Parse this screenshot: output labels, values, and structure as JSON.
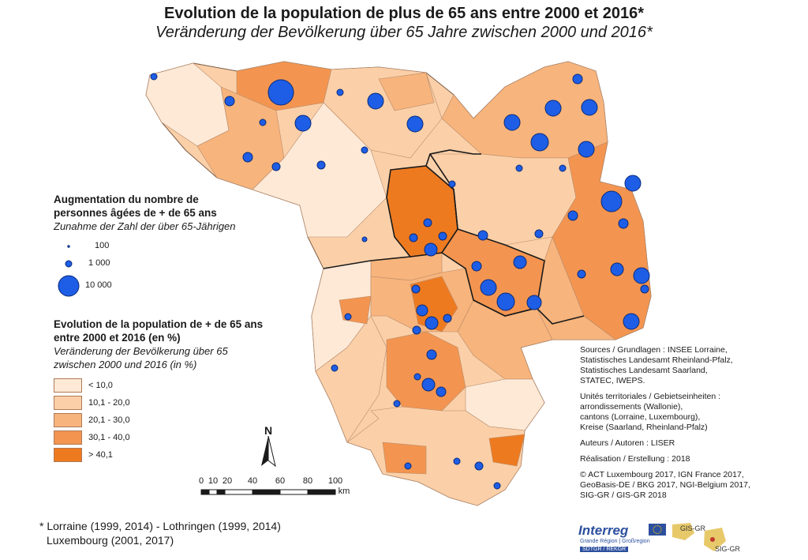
{
  "title": "Evolution de la population de plus de 65 ans entre 2000 et 2016*",
  "subtitle": "Veränderung der Bevölkerung über 65 Jahre zwischen 2000 und 2016*",
  "legend_symbols": {
    "heading_fr_1": "Augmentation du nombre de",
    "heading_fr_2": "personnes âgées de + de 65 ans",
    "heading_de": "Zunahme der Zahl der über 65-Jährigen",
    "items": [
      {
        "label": "100",
        "value": 100
      },
      {
        "label": "1 000",
        "value": 1000
      },
      {
        "label": "10 000",
        "value": 10000
      }
    ]
  },
  "legend_classes": {
    "heading_fr_1": "Evolution de la population de + de 65 ans",
    "heading_fr_2": "entre 2000 et 2016 (en %)",
    "heading_de_1": "Veränderung der Bevölkerung über 65",
    "heading_de_2": "zwischen 2000 und 2016 (in %)",
    "items": [
      {
        "label": "< 10,0",
        "color": "#fde9d6"
      },
      {
        "label": "10,1 - 20,0",
        "color": "#fbd0a8"
      },
      {
        "label": "20,1 - 30,0",
        "color": "#f7b47c"
      },
      {
        "label": "30,1 - 40,0",
        "color": "#f39550"
      },
      {
        "label": "> 40,1",
        "color": "#ee7a20"
      }
    ]
  },
  "north_label": "N",
  "scale": {
    "ticks": [
      "0",
      "10",
      "20",
      "40",
      "60",
      "80",
      "100"
    ],
    "unit": "km"
  },
  "sources": [
    "Sources / Grundlagen : INSEE Lorraine,",
    "Statistisches Landesamt Rheinland-Pfalz,",
    "Statistisches Landesamt Saarland,",
    "STATEC, IWEPS.",
    "",
    "Unités territoriales / Gebietseinheiten :",
    "arrondissements (Wallonie),",
    "cantons (Lorraine, Luxembourg),",
    "Kreise (Saarland, Rheinland-Pfalz)",
    "",
    "Auteurs / Autoren : LISER",
    "",
    "Réalisation / Erstellung : 2018",
    "",
    "© ACT Luxembourg 2017, IGN France 2017,",
    "GeoBasis-DE / BKG 2017, NGI-Belgium 2017,",
    "SIG-GR / GIS-GR 2018"
  ],
  "footnote_1": "* Lorraine (1999, 2014) - Lothringen (1999, 2014)",
  "footnote_2": "Luxembourg (2001, 2017)",
  "logos": {
    "interreg": "Interreg",
    "interreg_sub": "Grande Région | Großregion",
    "interreg_sub2": "SDTGR / REKGR",
    "gis_1": "GIS-GR",
    "gis_2": "SIG-GR"
  },
  "colors": {
    "region_border": "#5a3a2a",
    "country_border": "#1a1a1a",
    "circle_fill": "#1e5ee6",
    "circle_stroke": "#0a2a7a"
  }
}
